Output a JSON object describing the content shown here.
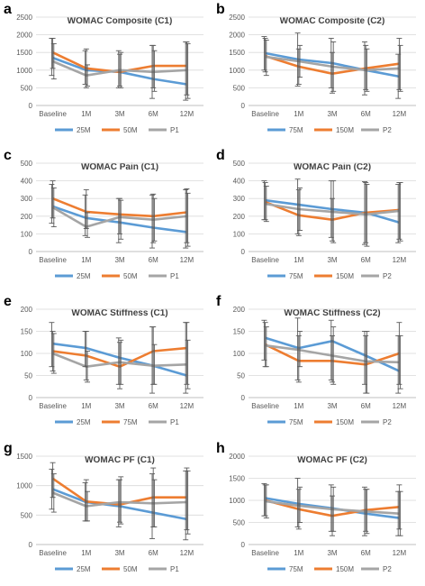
{
  "chart_data": [
    {
      "panel": "a",
      "type": "line",
      "title": "WOMAC Composite (C1)",
      "categories": [
        "Baseline",
        "1M",
        "3M",
        "6M",
        "12M"
      ],
      "ylim": [
        0,
        2500
      ],
      "yticks": [
        0,
        500,
        1000,
        1500,
        2000,
        2500
      ],
      "grid": true,
      "legend": "bottom",
      "colors": [
        "#5b9bd5",
        "#ed7d31",
        "#a5a5a5"
      ],
      "series": [
        {
          "name": "25M",
          "values": [
            1350,
            1000,
            950,
            750,
            600
          ],
          "err_low": [
            850,
            600,
            500,
            200,
            150
          ],
          "err_high": [
            1900,
            1550,
            1550,
            1700,
            1800
          ]
        },
        {
          "name": "50M",
          "values": [
            1500,
            1050,
            950,
            1120,
            1120
          ],
          "err_low": [
            1050,
            500,
            550,
            500,
            300
          ],
          "err_high": [
            1900,
            1600,
            1450,
            1700,
            1800
          ]
        },
        {
          "name": "P1",
          "values": [
            1250,
            850,
            1000,
            950,
            1000
          ],
          "err_low": [
            750,
            550,
            500,
            400,
            200
          ],
          "err_high": [
            1750,
            1150,
            1500,
            1550,
            1750
          ]
        }
      ]
    },
    {
      "panel": "b",
      "type": "line",
      "title": "WOMAC Composite (C2)",
      "categories": [
        "Baseline",
        "1M",
        "3M",
        "6M",
        "12M"
      ],
      "ylim": [
        0,
        2500
      ],
      "yticks": [
        0,
        500,
        1000,
        1500,
        2000,
        2500
      ],
      "grid": true,
      "legend": "bottom",
      "colors": [
        "#5b9bd5",
        "#ed7d31",
        "#a5a5a5"
      ],
      "series": [
        {
          "name": "75M",
          "values": [
            1480,
            1300,
            1200,
            1000,
            820
          ],
          "err_low": [
            1000,
            550,
            500,
            300,
            200
          ],
          "err_high": [
            1950,
            2050,
            1900,
            1800,
            1450
          ]
        },
        {
          "name": "150M",
          "values": [
            1400,
            1100,
            900,
            1050,
            1180
          ],
          "err_low": [
            950,
            600,
            350,
            450,
            450
          ],
          "err_high": [
            1900,
            1600,
            1500,
            1700,
            1900
          ]
        },
        {
          "name": "P2",
          "values": [
            1380,
            1250,
            1100,
            1000,
            1050
          ],
          "err_low": [
            850,
            800,
            400,
            400,
            400
          ],
          "err_high": [
            1850,
            1700,
            1800,
            1600,
            1700
          ]
        }
      ]
    },
    {
      "panel": "c",
      "type": "line",
      "title": "WOMAC Pain (C1)",
      "categories": [
        "Baseline",
        "1M",
        "3M",
        "6M",
        "12M"
      ],
      "ylim": [
        0,
        500
      ],
      "yticks": [
        0,
        100,
        200,
        300,
        400,
        500
      ],
      "grid": true,
      "legend": "bottom",
      "colors": [
        "#5b9bd5",
        "#ed7d31",
        "#a5a5a5"
      ],
      "series": [
        {
          "name": "25M",
          "values": [
            255,
            190,
            165,
            135,
            110
          ],
          "err_low": [
            160,
            90,
            50,
            20,
            20
          ],
          "err_high": [
            380,
            320,
            300,
            320,
            350
          ]
        },
        {
          "name": "50M",
          "values": [
            300,
            225,
            210,
            200,
            222
          ],
          "err_low": [
            190,
            130,
            100,
            50,
            50
          ],
          "err_high": [
            400,
            350,
            300,
            325,
            355
          ]
        },
        {
          "name": "P1",
          "values": [
            250,
            140,
            195,
            180,
            200
          ],
          "err_low": [
            140,
            80,
            70,
            60,
            30
          ],
          "err_high": [
            360,
            220,
            290,
            300,
            330
          ]
        }
      ]
    },
    {
      "panel": "d",
      "type": "line",
      "title": "WOMAC Pain (C2)",
      "categories": [
        "Baseline",
        "1M",
        "3M",
        "6M",
        "12M"
      ],
      "ylim": [
        0,
        500
      ],
      "yticks": [
        0,
        100,
        200,
        300,
        400,
        500
      ],
      "grid": true,
      "legend": "bottom",
      "colors": [
        "#5b9bd5",
        "#ed7d31",
        "#a5a5a5"
      ],
      "series": [
        {
          "name": "75M",
          "values": [
            290,
            265,
            240,
            220,
            165
          ],
          "err_low": [
            180,
            100,
            80,
            40,
            50
          ],
          "err_high": [
            400,
            410,
            400,
            395,
            380
          ]
        },
        {
          "name": "150M",
          "values": [
            280,
            205,
            180,
            220,
            235
          ],
          "err_low": [
            180,
            90,
            60,
            50,
            70
          ],
          "err_high": [
            390,
            350,
            300,
            390,
            390
          ]
        },
        {
          "name": "P2",
          "values": [
            270,
            240,
            225,
            210,
            230
          ],
          "err_low": [
            170,
            120,
            50,
            30,
            60
          ],
          "err_high": [
            370,
            360,
            400,
            380,
            390
          ]
        }
      ]
    },
    {
      "panel": "e",
      "type": "line",
      "title": "WOMAC Stiffness (C1)",
      "categories": [
        "Baseline",
        "1M",
        "3M",
        "6M",
        "12M"
      ],
      "ylim": [
        0,
        200
      ],
      "yticks": [
        0,
        50,
        100,
        150,
        200
      ],
      "grid": true,
      "legend": "bottom",
      "colors": [
        "#5b9bd5",
        "#ed7d31",
        "#a5a5a5"
      ],
      "series": [
        {
          "name": "25M",
          "values": [
            122,
            112,
            90,
            72,
            50
          ],
          "err_low": [
            70,
            70,
            30,
            10,
            10
          ],
          "err_high": [
            170,
            150,
            135,
            160,
            170
          ]
        },
        {
          "name": "75M",
          "values": [
            105,
            95,
            70,
            105,
            112
          ],
          "err_low": [
            60,
            40,
            20,
            30,
            30
          ],
          "err_high": [
            150,
            150,
            125,
            160,
            170
          ]
        },
        {
          "name": "P1",
          "values": [
            100,
            70,
            80,
            72,
            75
          ],
          "err_low": [
            55,
            35,
            30,
            30,
            20
          ],
          "err_high": [
            145,
            105,
            130,
            120,
            130
          ]
        }
      ]
    },
    {
      "panel": "f",
      "type": "line",
      "title": "WOMAC Stiffness (C2)",
      "categories": [
        "Baseline",
        "1M",
        "3M",
        "6M",
        "12M"
      ],
      "ylim": [
        0,
        200
      ],
      "yticks": [
        0,
        50,
        100,
        150,
        200
      ],
      "grid": true,
      "legend": "bottom",
      "colors": [
        "#5b9bd5",
        "#ed7d31",
        "#a5a5a5"
      ],
      "series": [
        {
          "name": "75M",
          "values": [
            135,
            112,
            128,
            95,
            60
          ],
          "err_low": [
            85,
            40,
            40,
            30,
            10
          ],
          "err_high": [
            175,
            180,
            175,
            150,
            140
          ]
        },
        {
          "name": "150M",
          "values": [
            120,
            83,
            83,
            75,
            100
          ],
          "err_low": [
            70,
            35,
            35,
            10,
            30
          ],
          "err_high": [
            170,
            140,
            140,
            140,
            170
          ]
        },
        {
          "name": "P2",
          "values": [
            118,
            108,
            95,
            82,
            80
          ],
          "err_low": [
            70,
            70,
            30,
            10,
            20
          ],
          "err_high": [
            160,
            150,
            160,
            150,
            140
          ]
        }
      ]
    },
    {
      "panel": "g",
      "type": "line",
      "title": "WOMAC PF (C1)",
      "categories": [
        "Baseline",
        "1M",
        "3M",
        "6M",
        "12M"
      ],
      "ylim": [
        0,
        1500
      ],
      "yticks": [
        0,
        500,
        1000,
        1500
      ],
      "grid": true,
      "legend": "bottom",
      "colors": [
        "#5b9bd5",
        "#ed7d31",
        "#a5a5a5"
      ],
      "series": [
        {
          "name": "25M",
          "values": [
            940,
            720,
            650,
            540,
            430
          ],
          "err_low": [
            600,
            400,
            300,
            100,
            80
          ],
          "err_high": [
            1280,
            1050,
            1100,
            1200,
            1250
          ]
        },
        {
          "name": "50M",
          "values": [
            1120,
            730,
            680,
            800,
            800
          ],
          "err_low": [
            800,
            400,
            380,
            300,
            250
          ],
          "err_high": [
            1390,
            1100,
            1100,
            1300,
            1300
          ]
        },
        {
          "name": "P1",
          "values": [
            880,
            650,
            720,
            700,
            720
          ],
          "err_low": [
            550,
            400,
            350,
            300,
            180
          ],
          "err_high": [
            1200,
            900,
            1150,
            1100,
            1250
          ]
        }
      ]
    },
    {
      "panel": "h",
      "type": "line",
      "title": "WOMAC PF (C2)",
      "categories": [
        "Baseline",
        "1M",
        "3M",
        "6M",
        "12M"
      ],
      "ylim": [
        0,
        2000
      ],
      "yticks": [
        0,
        500,
        1000,
        1500,
        2000
      ],
      "grid": true,
      "legend": "bottom",
      "colors": [
        "#5b9bd5",
        "#ed7d31",
        "#a5a5a5"
      ],
      "series": [
        {
          "name": "75M",
          "values": [
            1050,
            920,
            820,
            700,
            600
          ],
          "err_low": [
            650,
            400,
            300,
            200,
            200
          ],
          "err_high": [
            1380,
            1500,
            1350,
            1300,
            1200
          ]
        },
        {
          "name": "150M",
          "values": [
            1000,
            800,
            650,
            780,
            850
          ],
          "err_low": [
            650,
            350,
            200,
            300,
            350
          ],
          "err_high": [
            1350,
            1250,
            1100,
            1250,
            1350
          ]
        },
        {
          "name": "P2",
          "values": [
            980,
            880,
            800,
            750,
            700
          ],
          "err_low": [
            600,
            500,
            300,
            250,
            200
          ],
          "err_high": [
            1350,
            1300,
            1300,
            1250,
            1200
          ]
        }
      ]
    }
  ]
}
